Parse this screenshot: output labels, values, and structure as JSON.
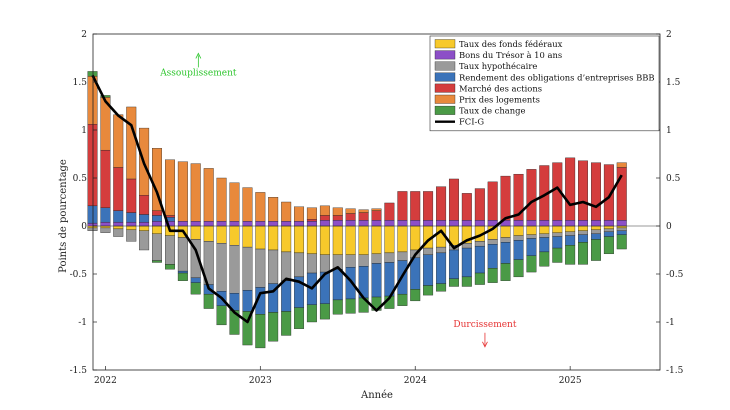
{
  "chart_data": {
    "type": "bar",
    "subtype": "stacked-bar-with-line",
    "xlabel": "Année",
    "ylabel": "Points de pourcentage",
    "ylim": [
      -1.5,
      2
    ],
    "yticks": [
      -1.5,
      -1,
      -0.5,
      0,
      0.5,
      1,
      1.5,
      2
    ],
    "ytick_labels": [
      "-1.5",
      "-1",
      "-0.5",
      "0",
      "0.5",
      "1",
      "1.5",
      "2"
    ],
    "xlim": [
      2021.92,
      2025.58
    ],
    "xticks": [
      2022,
      2023,
      2024,
      2025
    ],
    "xtick_labels": [
      "2022",
      "2023",
      "2024",
      "2025"
    ],
    "annotations": [
      {
        "id": "easing",
        "text": "Assouplissement",
        "color": "#2dc52d",
        "arrow": "up",
        "x": 2022.6,
        "y": 1.6
      },
      {
        "id": "tightening",
        "text": "Durcissement",
        "color": "#e63333",
        "arrow": "down",
        "x": 2024.45,
        "y": -1.05
      }
    ],
    "months": [
      2021.917,
      2022.0,
      2022.083,
      2022.167,
      2022.25,
      2022.333,
      2022.417,
      2022.5,
      2022.583,
      2022.667,
      2022.75,
      2022.833,
      2022.917,
      2023.0,
      2023.083,
      2023.167,
      2023.25,
      2023.333,
      2023.417,
      2023.5,
      2023.583,
      2023.667,
      2023.75,
      2023.833,
      2023.917,
      2024.0,
      2024.083,
      2024.167,
      2024.25,
      2024.333,
      2024.417,
      2024.5,
      2024.583,
      2024.667,
      2024.75,
      2024.833,
      2024.917,
      2025.0,
      2025.083,
      2025.167,
      2025.25,
      2025.333
    ],
    "series": [
      {
        "key": "ff",
        "name": "Taux des fonds fédéraux",
        "color": "#f7c92b",
        "values": [
          -0.02,
          -0.02,
          -0.03,
          -0.04,
          -0.05,
          -0.08,
          -0.1,
          -0.12,
          -0.14,
          -0.16,
          -0.18,
          -0.2,
          -0.22,
          -0.24,
          -0.25,
          -0.27,
          -0.28,
          -0.29,
          -0.3,
          -0.3,
          -0.3,
          -0.3,
          -0.29,
          -0.28,
          -0.27,
          -0.25,
          -0.23,
          -0.22,
          -0.2,
          -0.18,
          -0.16,
          -0.14,
          -0.12,
          -0.1,
          -0.09,
          -0.08,
          -0.07,
          -0.06,
          -0.05,
          -0.04,
          -0.03,
          -0.02
        ]
      },
      {
        "key": "t10",
        "name": "Bons du Trésor à 10 ans",
        "color": "#8c4fc7",
        "values": [
          0.03,
          0.04,
          0.04,
          0.04,
          0.04,
          0.05,
          0.05,
          0.05,
          0.05,
          0.05,
          0.05,
          0.05,
          0.05,
          0.05,
          0.05,
          0.05,
          0.05,
          0.05,
          0.06,
          0.06,
          0.06,
          0.06,
          0.06,
          0.06,
          0.06,
          0.06,
          0.06,
          0.06,
          0.06,
          0.06,
          0.06,
          0.06,
          0.06,
          0.06,
          0.06,
          0.06,
          0.06,
          0.06,
          0.06,
          0.06,
          0.06,
          0.06
        ]
      },
      {
        "key": "mort",
        "name": "Taux hypothécaire",
        "color": "#9a9a9a",
        "values": [
          -0.03,
          -0.05,
          -0.08,
          -0.12,
          -0.2,
          -0.28,
          -0.3,
          -0.35,
          -0.4,
          -0.45,
          -0.5,
          -0.5,
          -0.45,
          -0.4,
          -0.35,
          -0.3,
          -0.25,
          -0.2,
          -0.18,
          -0.15,
          -0.13,
          -0.12,
          -0.1,
          -0.1,
          -0.09,
          -0.08,
          -0.07,
          -0.06,
          -0.05,
          -0.05,
          -0.05,
          -0.05,
          -0.05,
          -0.05,
          -0.04,
          -0.04,
          -0.04,
          -0.04,
          -0.04,
          -0.04,
          -0.03,
          -0.03
        ]
      },
      {
        "key": "bbb",
        "name": "Rendement des obligations d’entreprises BBB",
        "color": "#3b73b9",
        "values": [
          0.18,
          0.15,
          0.12,
          0.1,
          0.08,
          0.06,
          0.04,
          -0.02,
          -0.05,
          -0.1,
          -0.15,
          -0.18,
          -0.22,
          -0.28,
          -0.3,
          -0.32,
          -0.32,
          -0.33,
          -0.33,
          -0.32,
          -0.33,
          -0.33,
          -0.35,
          -0.35,
          -0.35,
          -0.33,
          -0.32,
          -0.32,
          -0.3,
          -0.3,
          -0.28,
          -0.25,
          -0.22,
          -0.2,
          -0.18,
          -0.15,
          -0.12,
          -0.1,
          -0.08,
          -0.06,
          -0.05,
          -0.04
        ]
      },
      {
        "key": "eq",
        "name": "Marché des actions",
        "color": "#d43d3d",
        "values": [
          0.85,
          0.6,
          0.45,
          0.35,
          0.2,
          0.05,
          0.02,
          0.0,
          0.0,
          0.0,
          0.0,
          0.0,
          0.0,
          0.0,
          0.0,
          0.0,
          0.0,
          0.02,
          0.05,
          0.05,
          0.07,
          0.08,
          0.1,
          0.18,
          0.3,
          0.3,
          0.3,
          0.35,
          0.43,
          0.28,
          0.33,
          0.4,
          0.46,
          0.48,
          0.53,
          0.57,
          0.6,
          0.65,
          0.62,
          0.6,
          0.58,
          0.55
        ]
      },
      {
        "key": "hp",
        "name": "Prix des logements",
        "color": "#e8893c",
        "values": [
          0.5,
          0.55,
          0.55,
          0.75,
          0.7,
          0.65,
          0.58,
          0.62,
          0.6,
          0.55,
          0.45,
          0.4,
          0.35,
          0.3,
          0.25,
          0.2,
          0.15,
          0.12,
          0.1,
          0.08,
          0.05,
          0.03,
          0.02,
          0.0,
          0.0,
          0.0,
          0.0,
          0.0,
          0.0,
          0.0,
          0.0,
          0.0,
          0.0,
          0.0,
          0.0,
          0.0,
          0.0,
          0.0,
          0.0,
          0.0,
          0.0,
          0.05
        ]
      },
      {
        "key": "fx",
        "name": "Taux de change",
        "color": "#4a9a46",
        "values": [
          0.05,
          0.02,
          0.0,
          0.0,
          0.0,
          -0.02,
          -0.05,
          -0.08,
          -0.12,
          -0.15,
          -0.2,
          -0.25,
          -0.35,
          -0.35,
          -0.3,
          -0.25,
          -0.22,
          -0.18,
          -0.16,
          -0.15,
          -0.15,
          -0.15,
          -0.14,
          -0.13,
          -0.12,
          -0.12,
          -0.1,
          -0.08,
          -0.08,
          -0.1,
          -0.12,
          -0.15,
          -0.18,
          -0.18,
          -0.17,
          -0.15,
          -0.15,
          -0.2,
          -0.23,
          -0.22,
          -0.18,
          -0.15
        ]
      }
    ],
    "line": {
      "name": "FCI-G",
      "color": "#000000",
      "x": [
        2021.917,
        2022.0,
        2022.083,
        2022.167,
        2022.25,
        2022.333,
        2022.417,
        2022.5,
        2022.583,
        2022.667,
        2022.75,
        2022.833,
        2022.917,
        2023.0,
        2023.083,
        2023.167,
        2023.25,
        2023.333,
        2023.417,
        2023.5,
        2023.583,
        2023.667,
        2023.75,
        2023.833,
        2023.917,
        2024.0,
        2024.083,
        2024.167,
        2024.25,
        2024.333,
        2024.417,
        2024.5,
        2024.583,
        2024.667,
        2024.75,
        2024.833,
        2024.917,
        2025.0,
        2025.083,
        2025.167,
        2025.25,
        2025.333
      ],
      "values": [
        1.57,
        1.3,
        1.15,
        1.05,
        0.65,
        0.35,
        -0.05,
        -0.05,
        -0.25,
        -0.65,
        -0.75,
        -0.9,
        -1.0,
        -0.7,
        -0.68,
        -0.55,
        -0.58,
        -0.65,
        -0.5,
        -0.43,
        -0.57,
        -0.75,
        -0.88,
        -0.75,
        -0.52,
        -0.3,
        -0.15,
        -0.05,
        -0.23,
        -0.15,
        -0.1,
        -0.03,
        0.08,
        0.12,
        0.25,
        0.32,
        0.4,
        0.22,
        0.25,
        0.2,
        0.3,
        0.53
      ]
    }
  }
}
